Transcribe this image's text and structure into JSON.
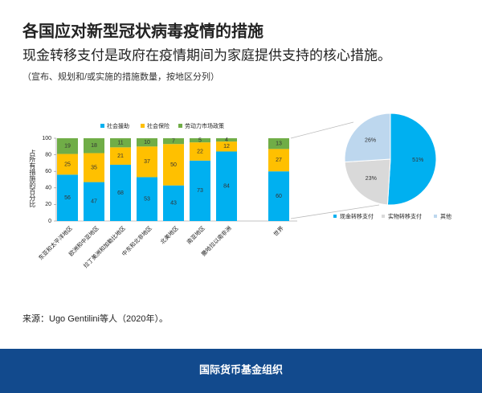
{
  "chart_data": [
    {
      "type": "bar",
      "stacked": true,
      "title": "各国应对新型冠状病毒疫情的措施",
      "subtitle": "现金转移支付是政府在疫情期间为家庭提供支持的核心措施。",
      "note": "（宣布、规划和/或实施的措施数量，按地区分列）",
      "ylabel": "占所有措施的百分比",
      "categories": [
        "东亚和太平洋地区",
        "欧洲和中亚地区",
        "拉丁美洲和加勒比地区",
        "中东和北非地区",
        "北美地区",
        "南亚地区",
        "撒哈拉以南非洲",
        "世界"
      ],
      "series": [
        {
          "name": "社会援助",
          "color": "#00b0f0",
          "values": [
            56,
            47,
            68,
            53,
            43,
            73,
            84,
            60
          ]
        },
        {
          "name": "社会保险",
          "color": "#ffc000",
          "values": [
            25,
            35,
            21,
            37,
            50,
            22,
            12,
            27
          ]
        },
        {
          "name": "劳动力市场政策",
          "color": "#70ad47",
          "values": [
            19,
            18,
            11,
            10,
            7,
            5,
            4,
            13
          ]
        }
      ],
      "ylim": [
        0,
        100
      ],
      "yticks": [
        0,
        20,
        40,
        60,
        80,
        100
      ],
      "grid": false
    },
    {
      "type": "pie",
      "categories": [
        "现金转移支付",
        "实物转移支付",
        "其他"
      ],
      "values": [
        51,
        23,
        26
      ],
      "value_labels": [
        "51%",
        "23%",
        "26%"
      ],
      "colors": [
        "#00b0f0",
        "#d9d9d9",
        "#bdd7ee"
      ]
    }
  ],
  "source": "来源：Ugo Gentilini等人（2020年）。",
  "footer": "国际货币基金组织"
}
